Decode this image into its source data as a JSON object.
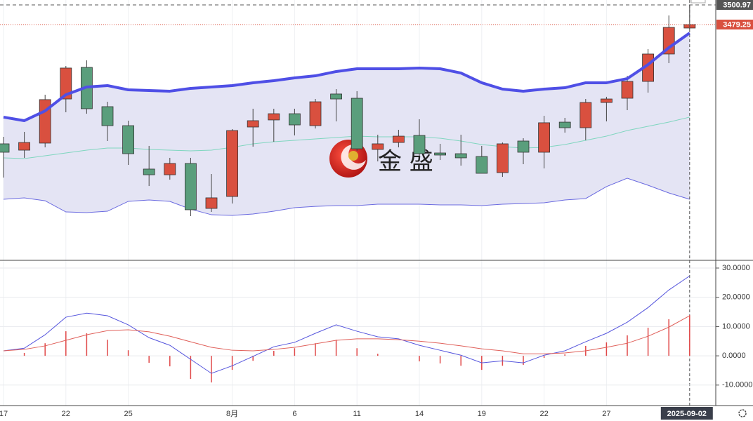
{
  "chart_data": [
    {
      "type": "candlestick",
      "categories": [
        "17",
        null,
        null,
        "22",
        null,
        null,
        "25",
        null,
        null,
        null,
        null,
        "8月",
        null,
        null,
        "6",
        null,
        null,
        "11",
        null,
        null,
        "14",
        null,
        null,
        "19",
        null,
        null,
        "22",
        null,
        null,
        "27",
        null,
        null,
        null,
        "2025-09-02"
      ],
      "open": [
        3347.4,
        3340.4,
        3348.2,
        3397.0,
        3431.9,
        3388.5,
        3367.5,
        3319.5,
        3313.2,
        3325.7,
        3276.0,
        3289.2,
        3366.0,
        3373.8,
        3380.7,
        3367.5,
        3402.5,
        3397.8,
        3341.2,
        3348.9,
        3356.7,
        3337.3,
        3336.5,
        3333.4,
        3315.6,
        3350.5,
        3338.1,
        3371.4,
        3365.2,
        3393.1,
        3397.8,
        3416.4,
        3446.7,
        3475.4
      ],
      "high": [
        3355.1,
        3360.6,
        3401.7,
        3433.5,
        3439.7,
        3393.9,
        3373.0,
        3345.1,
        3331.9,
        3331.9,
        3314.0,
        3363.7,
        3386.2,
        3386.2,
        3386.2,
        3397.0,
        3407.9,
        3405.6,
        3357.5,
        3362.9,
        3374.5,
        3347.4,
        3357.5,
        3345.1,
        3348.9,
        3353.6,
        3378.4,
        3376.1,
        3397.0,
        3399.4,
        3422.6,
        3452.1,
        3489.3,
        3500.97
      ],
      "low": [
        3310.1,
        3331.9,
        3343.5,
        3382.3,
        3380.7,
        3350.5,
        3324.1,
        3300.8,
        3307.8,
        3267.5,
        3272.1,
        3281.4,
        3344.3,
        3349.7,
        3356.7,
        3364.4,
        3372.2,
        3339.6,
        3328.0,
        3343.5,
        3334.2,
        3329.5,
        3323.3,
        3314.8,
        3310.9,
        3324.9,
        3320.2,
        3359.8,
        3351.3,
        3372.2,
        3384.6,
        3404.0,
        3436.6,
        3473.8
      ],
      "close": [
        3338.1,
        3348.9,
        3396.3,
        3431.2,
        3386.2,
        3367.5,
        3336.5,
        3313.2,
        3325.7,
        3274.5,
        3287.7,
        3362.1,
        3373.0,
        3380.7,
        3368.3,
        3393.9,
        3397.0,
        3341.9,
        3347.4,
        3355.9,
        3336.5,
        3335.0,
        3331.9,
        3314.8,
        3347.4,
        3338.1,
        3370.7,
        3365.2,
        3393.1,
        3397.0,
        3416.4,
        3446.7,
        3476.1,
        3479.25
      ],
      "up_color": "#d9503f",
      "down_color": "#5a9e7c",
      "band_fill": "#e4e4f4",
      "lines": [
        {
          "color": "#4f4fe6",
          "width": 4,
          "values": [
            3376.9,
            3373.0,
            3383.8,
            3401.7,
            3410.2,
            3411.8,
            3407.1,
            3406.3,
            3405.6,
            3408.7,
            3410.2,
            3411.8,
            3414.9,
            3417.2,
            3420.3,
            3422.6,
            3427.3,
            3430.4,
            3430.4,
            3430.4,
            3431.2,
            3430.4,
            3425.7,
            3414.9,
            3407.9,
            3405.6,
            3407.9,
            3409.4,
            3414.9,
            3414.9,
            3419.5,
            3435.0,
            3453.7,
            3469.9
          ]
        },
        {
          "color": "#7fd6bf",
          "width": 1,
          "values": [
            3331.9,
            3331.1,
            3334.2,
            3337.3,
            3340.4,
            3342.7,
            3342.7,
            3341.2,
            3340.4,
            3339.6,
            3340.4,
            3343.5,
            3347.4,
            3349.7,
            3351.3,
            3352.8,
            3354.4,
            3355.9,
            3355.1,
            3355.1,
            3355.1,
            3353.6,
            3350.5,
            3346.6,
            3344.3,
            3342.7,
            3343.5,
            3346.6,
            3351.3,
            3355.9,
            3362.1,
            3366.8,
            3371.4,
            3376.9
          ]
        },
        {
          "color": "#6a6ae0",
          "width": 1,
          "values": [
            3286.1,
            3287.7,
            3284.5,
            3272.1,
            3271.4,
            3272.9,
            3283.8,
            3285.3,
            3283.8,
            3275.2,
            3269.0,
            3268.3,
            3269.8,
            3272.9,
            3276.8,
            3278.3,
            3279.1,
            3279.1,
            3280.7,
            3280.7,
            3280.7,
            3279.9,
            3279.9,
            3279.1,
            3280.7,
            3281.4,
            3282.2,
            3285.3,
            3286.9,
            3300.1,
            3309.4,
            3301.6,
            3293.1,
            3286.1
          ]
        }
      ],
      "ylim": [
        3219.4,
        3506.4
      ],
      "price_lines": [
        {
          "value": 3500.97,
          "color": "#555555",
          "style": "dashed"
        },
        {
          "value": 3479.25,
          "color": "#d9503f",
          "style": "dotted"
        }
      ],
      "watermark": "金 盛"
    },
    {
      "type": "macd",
      "lines": [
        {
          "color": "#5555dd",
          "values": [
            1.7,
            2.6,
            7.2,
            13.2,
            14.6,
            13.7,
            10.6,
            6.2,
            3.6,
            -1.2,
            -6.0,
            -3.4,
            -0.2,
            3.1,
            4.6,
            7.7,
            10.6,
            8.4,
            6.5,
            5.8,
            3.6,
            1.9,
            0.2,
            -2.4,
            -1.7,
            -2.4,
            0.2,
            1.7,
            4.8,
            7.7,
            11.5,
            16.5,
            22.5,
            27.3
          ]
        },
        {
          "color": "#e0605a",
          "values": [
            1.7,
            2.2,
            3.4,
            5.3,
            7.2,
            8.6,
            8.9,
            8.2,
            6.7,
            4.8,
            2.9,
            1.9,
            1.7,
            2.2,
            2.9,
            4.1,
            5.3,
            5.8,
            5.8,
            5.5,
            5.0,
            4.3,
            3.4,
            2.4,
            1.7,
            0.7,
            0.7,
            1.0,
            1.7,
            2.9,
            4.3,
            6.7,
            9.8,
            13.7
          ]
        }
      ],
      "histogram": {
        "color": "#e04848",
        "values": [
          0,
          1.0,
          4.3,
          8.4,
          7.7,
          5.5,
          1.9,
          -2.4,
          -3.6,
          -7.9,
          -9.1,
          -4.8,
          -1.7,
          1.7,
          2.6,
          4.3,
          5.5,
          2.6,
          0.7,
          0,
          -1.9,
          -2.6,
          -3.4,
          -4.8,
          -3.4,
          -3.1,
          -0.7,
          0.5,
          3.4,
          4.6,
          7.0,
          9.6,
          12.5,
          13.9
        ]
      },
      "ylim": [
        -17.0,
        32.4
      ],
      "yticks": [
        {
          "value": 30,
          "label": "30.0000"
        },
        {
          "value": 20,
          "label": "20.0000"
        },
        {
          "value": 10,
          "label": "10.0000"
        },
        {
          "value": 0,
          "label": "0.0000"
        },
        {
          "value": -10,
          "label": "-10.0000"
        }
      ],
      "grid": true
    }
  ]
}
